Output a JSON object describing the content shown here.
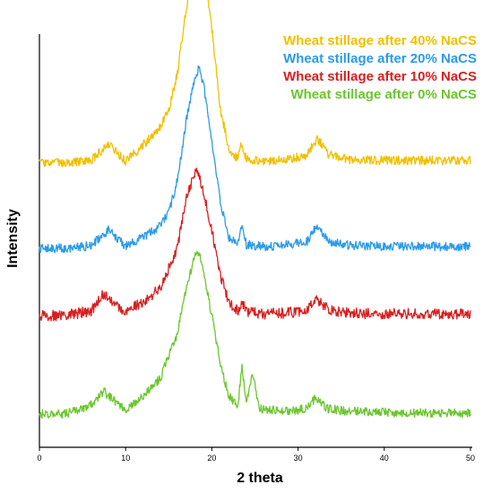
{
  "chart_data": {
    "type": "line",
    "title": "",
    "xlabel": "2 theta",
    "ylabel": "Intensity",
    "xlim": [
      0,
      50
    ],
    "xticks": [
      "0",
      "10",
      "20",
      "30",
      "40",
      "50"
    ],
    "y_ticks_shown": false,
    "grid": false,
    "legend_position": "top-right",
    "series": [
      {
        "name": "Wheat stillage after 40% NaCS",
        "color": "#F0C000",
        "offset": 290,
        "noise": 5,
        "x": [
          0,
          3,
          6,
          8,
          10,
          12,
          14,
          15,
          16,
          17,
          18,
          18.5,
          19,
          20,
          21,
          22,
          23,
          23.4,
          24,
          26,
          29,
          31,
          32.2,
          33.5,
          36,
          40,
          45,
          50
        ],
        "y": [
          0,
          0,
          3,
          22,
          2,
          20,
          40,
          60,
          100,
          170,
          230,
          240,
          225,
          150,
          60,
          15,
          5,
          20,
          5,
          2,
          5,
          8,
          28,
          10,
          4,
          3,
          3,
          3
        ]
      },
      {
        "name": "Wheat stillage after 20% NaCS",
        "color": "#2B9BE8",
        "offset": 195,
        "noise": 5,
        "x": [
          0,
          3,
          6,
          8,
          10,
          12,
          14,
          15,
          16,
          17,
          18,
          18.5,
          19,
          20,
          21,
          22,
          23,
          23.5,
          24,
          26,
          29,
          31,
          32.2,
          33.5,
          36,
          40,
          45,
          50
        ],
        "y": [
          0,
          0,
          3,
          20,
          2,
          12,
          25,
          40,
          75,
          140,
          190,
          200,
          185,
          120,
          50,
          12,
          4,
          30,
          4,
          2,
          4,
          7,
          25,
          8,
          3,
          2,
          2,
          2
        ]
      },
      {
        "name": "Wheat stillage after 10% NaCS",
        "color": "#D81F1F",
        "offset": 120,
        "noise": 6,
        "x": [
          0,
          3,
          6,
          7.5,
          9,
          10,
          12,
          14,
          16,
          17,
          18,
          18.3,
          19,
          20,
          21,
          22,
          23,
          23.5,
          24,
          26,
          29,
          31,
          32,
          33.5,
          36,
          40,
          45,
          50
        ],
        "y": [
          0,
          0,
          5,
          25,
          10,
          5,
          15,
          30,
          75,
          130,
          160,
          165,
          140,
          95,
          45,
          15,
          5,
          15,
          4,
          2,
          3,
          6,
          20,
          6,
          3,
          2,
          2,
          2
        ]
      },
      {
        "name": "Wheat stillage after 0% NaCS",
        "color": "#6CC52F",
        "offset": 10,
        "noise": 5,
        "x": [
          0,
          3,
          6,
          7.5,
          9,
          10,
          12,
          14,
          16,
          17,
          18,
          18.5,
          19,
          20,
          21,
          22,
          23,
          23.5,
          24,
          24.7,
          25.5,
          26,
          29,
          31,
          32,
          33.5,
          36,
          40,
          45,
          50
        ],
        "y": [
          0,
          0,
          10,
          25,
          12,
          5,
          20,
          40,
          90,
          140,
          175,
          180,
          160,
          110,
          55,
          20,
          8,
          55,
          10,
          45,
          8,
          5,
          4,
          6,
          18,
          6,
          3,
          2,
          1,
          1
        ]
      }
    ]
  }
}
